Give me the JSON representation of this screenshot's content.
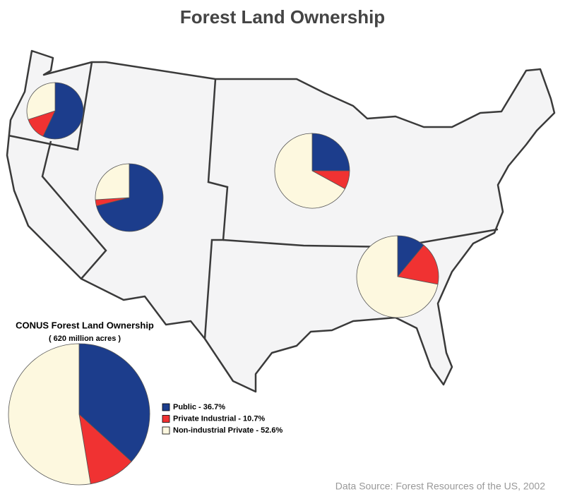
{
  "title": "Forest Land Ownership",
  "source": "Data Source: Forest Resources of the US, 2002",
  "chart_data": [
    {
      "type": "pie",
      "title": "CONUS Forest Land Ownership",
      "subtitle": "( 620 million acres )",
      "categories": [
        "Public - 36.7%",
        "Private Industrial - 10.7%",
        "Non-industrial Private - 52.6%"
      ],
      "values": [
        36.7,
        10.7,
        52.6
      ],
      "colors": [
        "#1c3d8c",
        "#f03232",
        "#fdf8df"
      ]
    },
    {
      "type": "pie",
      "values": [
        57,
        13,
        30
      ],
      "colors": [
        "#1c3d8c",
        "#f03232",
        "#fdf8df"
      ]
    },
    {
      "type": "pie",
      "values": [
        71,
        3,
        26
      ],
      "colors": [
        "#1c3d8c",
        "#f03232",
        "#fdf8df"
      ]
    },
    {
      "type": "pie",
      "values": [
        25,
        8,
        67
      ],
      "colors": [
        "#1c3d8c",
        "#f03232",
        "#fdf8df"
      ]
    },
    {
      "type": "pie",
      "values": [
        11,
        17,
        72
      ],
      "colors": [
        "#1c3d8c",
        "#f03232",
        "#fdf8df"
      ]
    }
  ]
}
